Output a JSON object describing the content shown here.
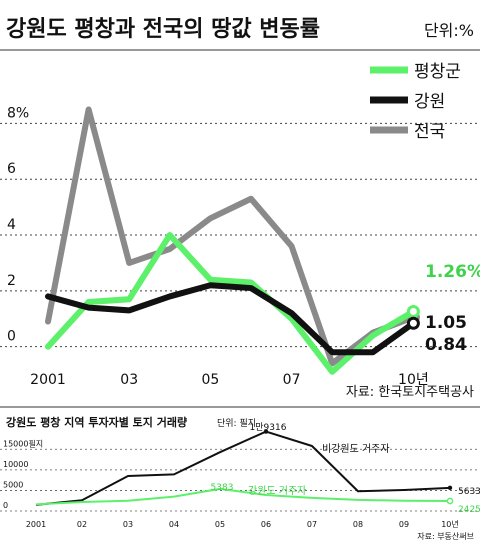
{
  "chart_data": [
    {
      "type": "line",
      "title": "강원도 평창과 전국의 땅값 변동률",
      "unit_label": "단위:%",
      "x": [
        "2001",
        "02",
        "03",
        "04",
        "05",
        "06",
        "07",
        "08",
        "09",
        "10년"
      ],
      "x_tick_labels": [
        "2001",
        "03",
        "05",
        "07",
        "10년"
      ],
      "y_tick_labels": [
        "0",
        "2",
        "4",
        "6",
        "8%"
      ],
      "ylim": [
        -0.8,
        10.2
      ],
      "grid": true,
      "legend_position": "top-right",
      "series": [
        {
          "name": "평창군",
          "color": "#5df06a",
          "values": [
            0.0,
            1.6,
            1.7,
            4.0,
            2.4,
            2.3,
            1.0,
            -0.9,
            0.4,
            1.26
          ]
        },
        {
          "name": "강원",
          "color": "#111111",
          "values": [
            1.8,
            1.4,
            1.3,
            1.8,
            2.2,
            2.1,
            1.2,
            -0.2,
            -0.2,
            0.84
          ]
        },
        {
          "name": "전국",
          "color": "#8a8a8a",
          "values": [
            0.9,
            8.5,
            3.0,
            3.5,
            4.6,
            5.3,
            3.6,
            -0.6,
            0.5,
            1.05
          ]
        }
      ],
      "end_labels": [
        "1.26%",
        "1.05",
        "0.84"
      ],
      "source": "자료: 한국토지주택공사"
    },
    {
      "type": "line",
      "title": "강원도 평창 지역 투자자별 토지 거래량",
      "unit_label": "단위: 필지",
      "x": [
        "2001",
        "02",
        "03",
        "04",
        "05",
        "06",
        "07",
        "08",
        "09",
        "10년"
      ],
      "y_tick_labels": [
        "0",
        "5000",
        "10000",
        "15000필지"
      ],
      "ylim": [
        0,
        17500
      ],
      "grid": true,
      "series": [
        {
          "name": "비강원도 거주자",
          "color": "#111111",
          "values": [
            1500,
            2600,
            8500,
            8900,
            14300,
            19316,
            15800,
            4800,
            5100,
            5633
          ]
        },
        {
          "name": "강원도 거주자",
          "color": "#5df06a",
          "values": [
            1600,
            2200,
            2500,
            3500,
            5383,
            3900,
            3200,
            2700,
            2500,
            2425
          ]
        }
      ],
      "point_labels": {
        "peak": "1만9316",
        "ridge": "5383",
        "end_black": "5633",
        "end_green": "2425"
      },
      "source": "자료: 부동산써브"
    }
  ]
}
